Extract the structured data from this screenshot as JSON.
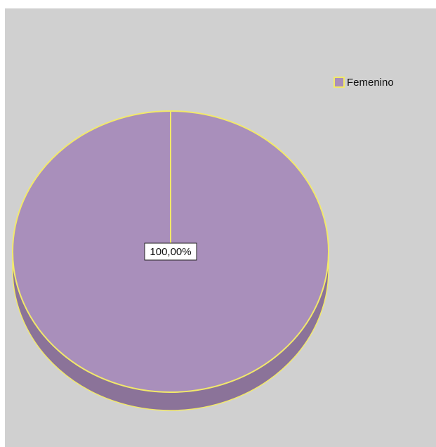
{
  "chart_data": {
    "type": "pie",
    "title": "",
    "slices": [
      {
        "label": "Femenino",
        "value": 100.0,
        "color": "#a98fbb"
      }
    ],
    "data_labels": [
      "100,00%"
    ],
    "legend": {
      "placement": "top-right",
      "entries": [
        "Femenino"
      ]
    },
    "colors": {
      "background": "#d0d0d0",
      "slice_fill": "#a98fbb",
      "slice_side": "#8b7399",
      "outline": "#f2e96a"
    },
    "style": "3d"
  }
}
